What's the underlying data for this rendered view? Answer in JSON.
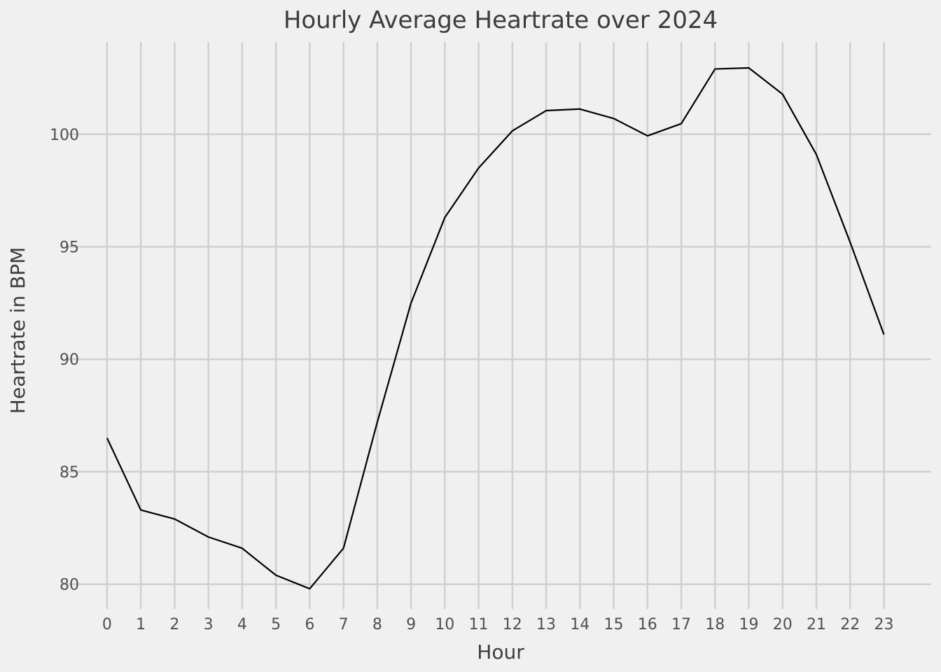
{
  "chart_data": {
    "type": "line",
    "title": "Hourly Average Heartrate over 2024",
    "xlabel": "Hour",
    "ylabel": "Heartrate in BPM",
    "x": [
      0,
      1,
      2,
      3,
      4,
      5,
      6,
      7,
      8,
      9,
      10,
      11,
      12,
      13,
      14,
      15,
      16,
      17,
      18,
      19,
      20,
      21,
      22,
      23
    ],
    "x_tick_labels": [
      "0",
      "1",
      "2",
      "3",
      "4",
      "5",
      "6",
      "7",
      "8",
      "9",
      "10",
      "11",
      "12",
      "13",
      "14",
      "15",
      "16",
      "17",
      "18",
      "19",
      "20",
      "21",
      "22",
      "23"
    ],
    "series": [
      {
        "values": [
          86.5,
          83.3,
          82.9,
          82.1,
          81.6,
          80.4,
          79.8,
          81.6,
          87.2,
          92.5,
          96.3,
          98.5,
          100.15,
          101.05,
          101.12,
          100.7,
          99.93,
          100.47,
          102.9,
          102.95,
          101.78,
          99.1,
          95.2,
          91.1
        ],
        "color": "#000000"
      }
    ],
    "y_ticks": [
      80,
      85,
      90,
      95,
      100
    ],
    "y_tick_labels": [
      "80",
      "85",
      "90",
      "95",
      "100"
    ],
    "xlim": [
      -1.2,
      24.4
    ],
    "ylim": [
      78.9,
      104.1
    ],
    "grid": true,
    "background": "#f0f0f0",
    "grid_color": "#d0d0d0"
  }
}
